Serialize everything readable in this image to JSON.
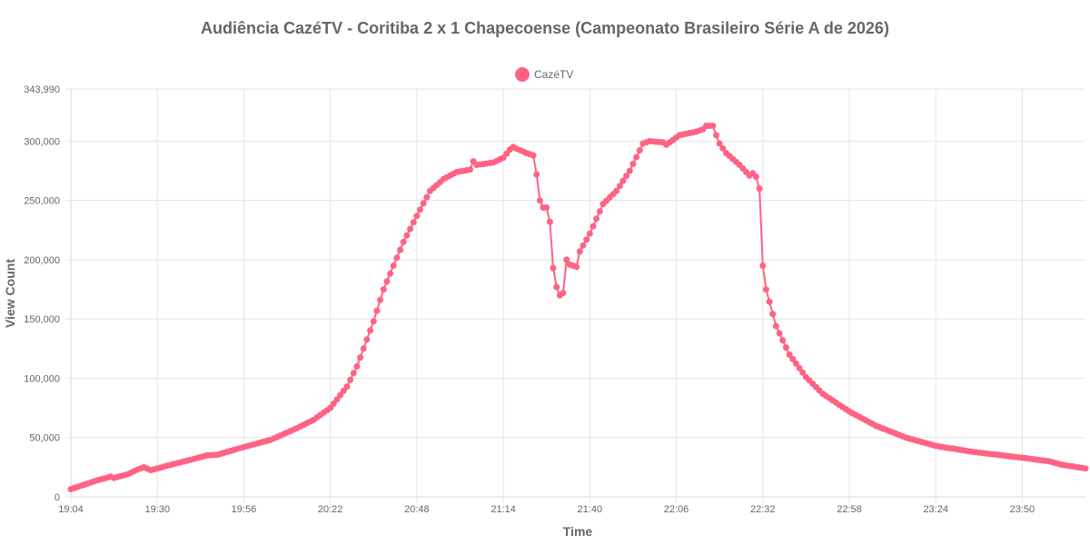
{
  "chart_data": {
    "type": "line",
    "title": "Audiência CazéTV - Coritiba 2 x 1 Chapecoense (Campeonato Brasileiro Série A de 2026)",
    "xlabel": "Time",
    "ylabel": "View Count",
    "ylim": [
      0,
      343990
    ],
    "y_ticks": [
      "0",
      "50,000",
      "100,000",
      "150,000",
      "200,000",
      "250,000",
      "300,000",
      "343,990"
    ],
    "y_tick_values": [
      0,
      50000,
      100000,
      150000,
      200000,
      250000,
      300000,
      343990
    ],
    "x_ticks": [
      "19:04",
      "19:30",
      "19:56",
      "20:22",
      "20:48",
      "21:14",
      "21:40",
      "22:06",
      "22:32",
      "22:58",
      "23:24",
      "23:50"
    ],
    "x_range": [
      "19:04",
      "00:09"
    ],
    "grid": true,
    "legend_position": "top",
    "colors": {
      "series": "#ff6384",
      "text": "#666666",
      "grid": "#e5e5e5"
    },
    "series": [
      {
        "name": "CazéTV",
        "keypoints": [
          [
            "19:04",
            6500
          ],
          [
            "19:12",
            14000
          ],
          [
            "19:16",
            17000
          ],
          [
            "19:17",
            16000
          ],
          [
            "19:21",
            19000
          ],
          [
            "19:24",
            23000
          ],
          [
            "19:26",
            25000
          ],
          [
            "19:28",
            22500
          ],
          [
            "19:34",
            27000
          ],
          [
            "19:41",
            32000
          ],
          [
            "19:45",
            35000
          ],
          [
            "19:48",
            35500
          ],
          [
            "19:56",
            42000
          ],
          [
            "20:04",
            48000
          ],
          [
            "20:12",
            58000
          ],
          [
            "20:17",
            65000
          ],
          [
            "20:22",
            75000
          ],
          [
            "20:27",
            93000
          ],
          [
            "20:30",
            110000
          ],
          [
            "20:32",
            125000
          ],
          [
            "20:35",
            148000
          ],
          [
            "20:38",
            175000
          ],
          [
            "20:41",
            195000
          ],
          [
            "20:44",
            215000
          ],
          [
            "20:48",
            237000
          ],
          [
            "20:52",
            258000
          ],
          [
            "20:56",
            268000
          ],
          [
            "21:00",
            274000
          ],
          [
            "21:04",
            276000
          ],
          [
            "21:05",
            283000
          ],
          [
            "21:06",
            280000
          ],
          [
            "21:11",
            282000
          ],
          [
            "21:14",
            286000
          ],
          [
            "21:16",
            293000
          ],
          [
            "21:17",
            295000
          ],
          [
            "21:21",
            290000
          ],
          [
            "21:23",
            288000
          ],
          [
            "21:24",
            272000
          ],
          [
            "21:25",
            250000
          ],
          [
            "21:26",
            244000
          ],
          [
            "21:27",
            244000
          ],
          [
            "21:28",
            232000
          ],
          [
            "21:29",
            193000
          ],
          [
            "21:30",
            177000
          ],
          [
            "21:31",
            170000
          ],
          [
            "21:32",
            172000
          ],
          [
            "21:33",
            200000
          ],
          [
            "21:34",
            196000
          ],
          [
            "21:35",
            195000
          ],
          [
            "21:36",
            194000
          ],
          [
            "21:37",
            207000
          ],
          [
            "21:40",
            222000
          ],
          [
            "21:44",
            247000
          ],
          [
            "21:48",
            258000
          ],
          [
            "21:52",
            275000
          ],
          [
            "21:56",
            298000
          ],
          [
            "21:58",
            300000
          ],
          [
            "22:02",
            299000
          ],
          [
            "22:03",
            297000
          ],
          [
            "22:07",
            305000
          ],
          [
            "22:12",
            308000
          ],
          [
            "22:14",
            310000
          ],
          [
            "22:15",
            313000
          ],
          [
            "22:17",
            313000
          ],
          [
            "22:18",
            305000
          ],
          [
            "22:19",
            298000
          ],
          [
            "22:21",
            290000
          ],
          [
            "22:25",
            280000
          ],
          [
            "22:28",
            271000
          ],
          [
            "22:29",
            273000
          ],
          [
            "22:30",
            270000
          ],
          [
            "22:31",
            260000
          ],
          [
            "22:32",
            195000
          ],
          [
            "22:33",
            175000
          ],
          [
            "22:36",
            144000
          ],
          [
            "22:40",
            120000
          ],
          [
            "22:45",
            101000
          ],
          [
            "22:50",
            87000
          ],
          [
            "22:58",
            72000
          ],
          [
            "23:06",
            60000
          ],
          [
            "23:15",
            50000
          ],
          [
            "23:24",
            43000
          ],
          [
            "23:35",
            38000
          ],
          [
            "23:50",
            33000
          ],
          [
            "23:58",
            30000
          ],
          [
            "00:02",
            27000
          ],
          [
            "00:09",
            24000
          ]
        ]
      }
    ]
  }
}
